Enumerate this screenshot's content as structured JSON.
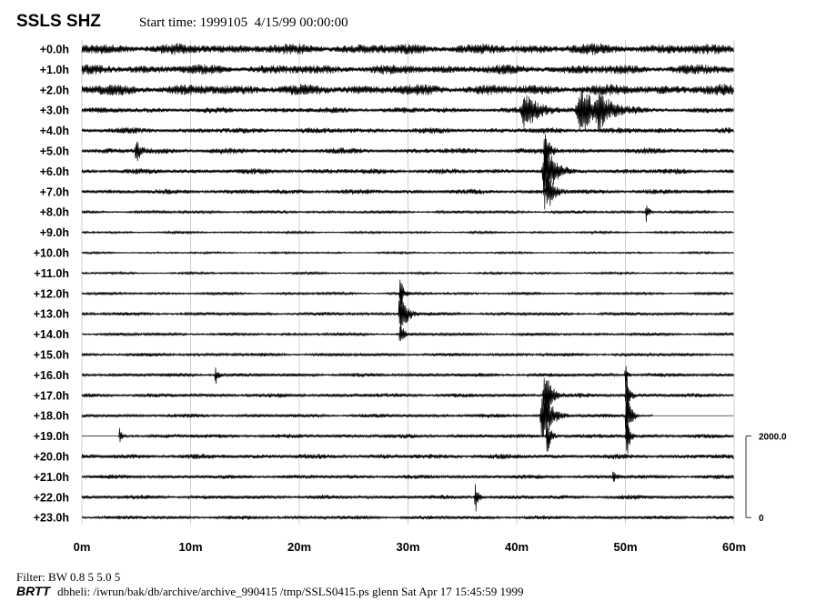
{
  "header": {
    "title": "SSLS SHZ",
    "start_time": "Start time: 1999105  4/15/99 00:00:00"
  },
  "footer": {
    "filter": "Filter: BW 0.8 5 5.0 5",
    "brand": "BRTT",
    "command": "dbheli: /iwrun/bak/db/archive/archive_990415 /tmp/SSLS0415.ps glenn Sat Apr 17 15:45:59 1999"
  },
  "chart_data": {
    "type": "line",
    "subtype": "helicorder",
    "title": "SSLS SHZ",
    "xlabel": "",
    "ylabel": "",
    "xlim": [
      0,
      60
    ],
    "x_ticks": [
      "0m",
      "10m",
      "20m",
      "30m",
      "40m",
      "50m",
      "60m"
    ],
    "row_labels": [
      "+0.0h",
      "+1.0h",
      "+2.0h",
      "+3.0h",
      "+4.0h",
      "+5.0h",
      "+6.0h",
      "+7.0h",
      "+8.0h",
      "+9.0h",
      "+10.0h",
      "+11.0h",
      "+12.0h",
      "+13.0h",
      "+14.0h",
      "+15.0h",
      "+16.0h",
      "+17.0h",
      "+18.0h",
      "+19.0h",
      "+20.0h",
      "+21.0h",
      "+22.0h",
      "+23.0h"
    ],
    "noise_levels": [
      0.55,
      0.5,
      0.55,
      0.3,
      0.3,
      0.3,
      0.28,
      0.26,
      0.16,
      0.12,
      0.1,
      0.12,
      0.14,
      0.18,
      0.16,
      0.18,
      0.2,
      0.22,
      0.2,
      0.22,
      0.26,
      0.22,
      0.22,
      0.2
    ],
    "events": [
      {
        "row": 3,
        "minute": 40.8,
        "amplitude": 0.9,
        "duration": 1.5
      },
      {
        "row": 3,
        "minute": 46.0,
        "amplitude": 1.1,
        "duration": 1.8
      },
      {
        "row": 3,
        "minute": 47.6,
        "amplitude": 0.8,
        "duration": 1.0
      },
      {
        "row": 5,
        "minute": 5.0,
        "amplitude": 0.7,
        "duration": 0.4
      },
      {
        "row": 5,
        "minute": 42.6,
        "amplitude": 1.4,
        "duration": 0.4
      },
      {
        "row": 6,
        "minute": 42.6,
        "amplitude": 1.8,
        "duration": 0.8
      },
      {
        "row": 7,
        "minute": 42.8,
        "amplitude": 1.1,
        "duration": 0.6
      },
      {
        "row": 8,
        "minute": 51.9,
        "amplitude": 0.5,
        "duration": 0.3
      },
      {
        "row": 12,
        "minute": 29.3,
        "amplitude": 0.9,
        "duration": 0.3
      },
      {
        "row": 13,
        "minute": 29.3,
        "amplitude": 1.5,
        "duration": 0.6
      },
      {
        "row": 14,
        "minute": 29.3,
        "amplitude": 0.6,
        "duration": 0.4
      },
      {
        "row": 16,
        "minute": 12.3,
        "amplitude": 0.5,
        "duration": 0.3
      },
      {
        "row": 16,
        "minute": 50.0,
        "amplitude": 0.7,
        "duration": 0.2
      },
      {
        "row": 17,
        "minute": 42.6,
        "amplitude": 1.6,
        "duration": 0.6
      },
      {
        "row": 17,
        "minute": 50.1,
        "amplitude": 1.6,
        "duration": 0.3
      },
      {
        "row": 18,
        "minute": 42.4,
        "amplitude": 1.8,
        "duration": 0.8
      },
      {
        "row": 18,
        "minute": 50.1,
        "amplitude": 1.8,
        "duration": 0.4
      },
      {
        "row": 19,
        "minute": 3.5,
        "amplitude": 0.6,
        "duration": 0.2
      },
      {
        "row": 19,
        "minute": 42.8,
        "amplitude": 1.0,
        "duration": 0.4
      },
      {
        "row": 19,
        "minute": 50.1,
        "amplitude": 1.4,
        "duration": 0.3
      },
      {
        "row": 21,
        "minute": 48.9,
        "amplitude": 0.4,
        "duration": 0.3
      },
      {
        "row": 22,
        "minute": 36.2,
        "amplitude": 0.9,
        "duration": 0.3
      }
    ],
    "gaps": [
      {
        "row": 18,
        "from_minute": 52.5,
        "to_minute": 60
      },
      {
        "row": 19,
        "from_minute": 0,
        "to_minute": 3.4
      }
    ],
    "scale_bar": {
      "top_label": "2000.0",
      "bottom_label": "0",
      "top_value": 2000,
      "bottom_value": 0
    },
    "grid": true,
    "colors": {
      "trace": "#000000",
      "grid": "#d0d0d0",
      "background": "#ffffff"
    }
  }
}
